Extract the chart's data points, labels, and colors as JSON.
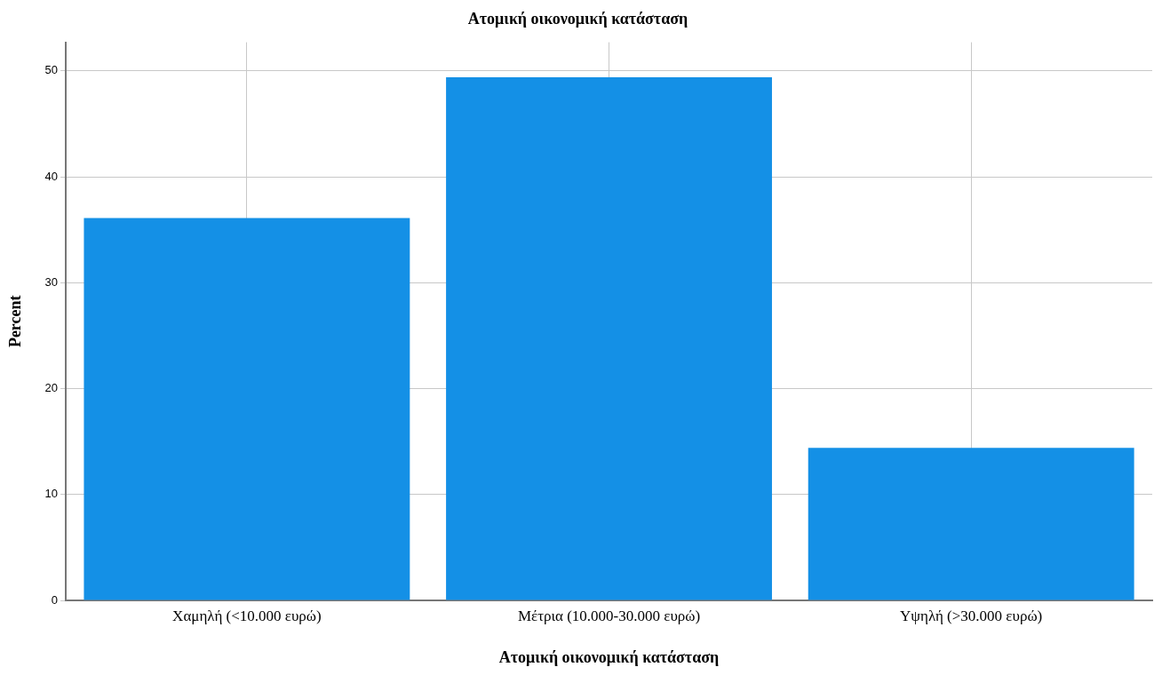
{
  "chart_data": {
    "type": "bar",
    "title": "Ατομική οικονομική κατάσταση",
    "xlabel": "Ατομική οικονομική κατάσταση",
    "ylabel": "Percent",
    "categories": [
      "Χαμηλή (<10.000 ευρώ)",
      "Μέτρια (10.000-30.000 ευρώ)",
      "Υψηλή (>30.000 ευρώ)"
    ],
    "values": [
      36.1,
      49.4,
      14.4
    ],
    "color": "#1490e6",
    "ylim": [
      0,
      52.7
    ],
    "yticks": [
      0,
      10,
      20,
      30,
      40,
      50
    ],
    "grid": true
  }
}
